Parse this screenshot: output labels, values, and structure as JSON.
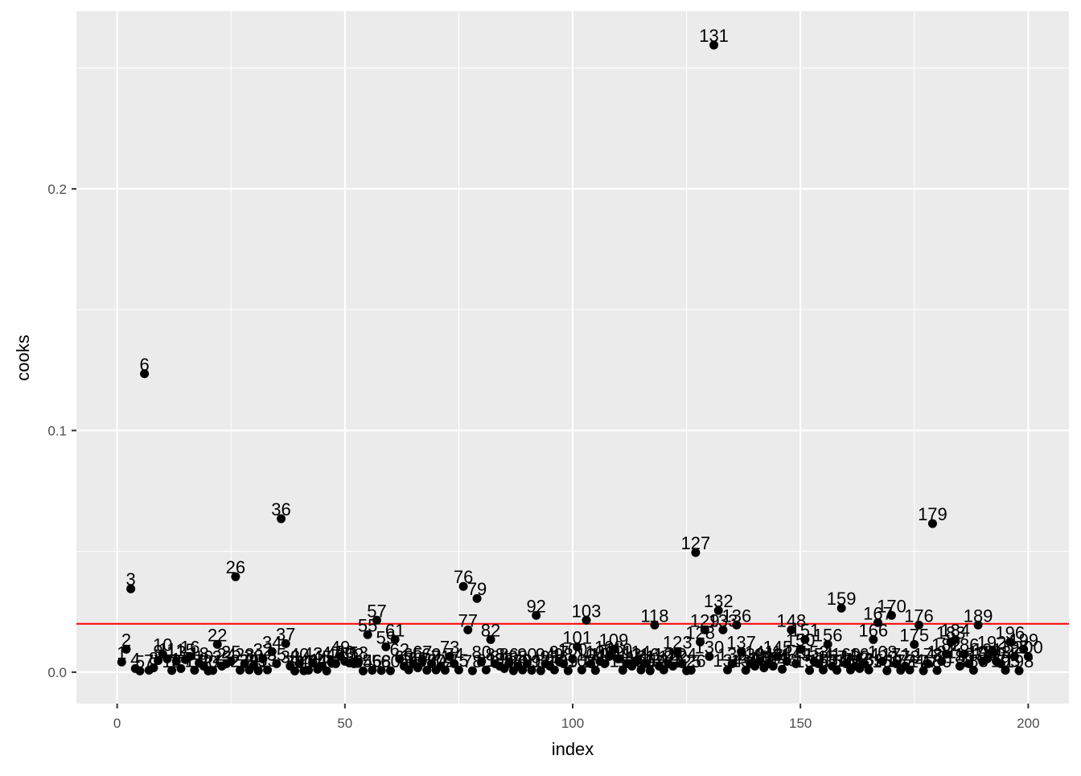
{
  "chart_data": {
    "type": "scatter",
    "xlabel": "index",
    "ylabel": "cooks",
    "xlim": [
      -8.94,
      208.94
    ],
    "ylim": [
      -0.01302,
      0.2735
    ],
    "x_ticks": [
      0,
      50,
      100,
      150,
      200
    ],
    "x_tick_labels": [
      "0",
      "50",
      "100",
      "150",
      "200"
    ],
    "y_ticks": [
      0.0,
      0.1,
      0.2
    ],
    "y_tick_labels": [
      "0.0",
      "0.1",
      "0.2"
    ],
    "grid": true,
    "reference_line": {
      "y": 0.02,
      "color": "#FF0000"
    },
    "colors": {
      "panel": "#EBEBEB",
      "grid": "#FFFFFF",
      "point": "#000000"
    },
    "points": [
      {
        "x": 1,
        "y": 0.0042,
        "label": "1"
      },
      {
        "x": 2,
        "y": 0.0095,
        "label": "2"
      },
      {
        "x": 3,
        "y": 0.0345,
        "label": "3"
      },
      {
        "x": 4,
        "y": 0.0015,
        "label": "4"
      },
      {
        "x": 5,
        "y": 0.0005,
        "label": "5"
      },
      {
        "x": 6,
        "y": 0.1235,
        "label": "6"
      },
      {
        "x": 7,
        "y": 0.0008,
        "label": "7"
      },
      {
        "x": 8,
        "y": 0.0018,
        "label": "8"
      },
      {
        "x": 9,
        "y": 0.0048,
        "label": "9"
      },
      {
        "x": 10,
        "y": 0.0075,
        "label": "10"
      },
      {
        "x": 11,
        "y": 0.0055,
        "label": "11"
      },
      {
        "x": 12,
        "y": 0.0007,
        "label": "12"
      },
      {
        "x": 13,
        "y": 0.0045,
        "label": "13"
      },
      {
        "x": 14,
        "y": 0.0015,
        "label": "14"
      },
      {
        "x": 15,
        "y": 0.0052,
        "label": "15"
      },
      {
        "x": 16,
        "y": 0.0065,
        "label": "16"
      },
      {
        "x": 17,
        "y": 0.0008,
        "label": "17"
      },
      {
        "x": 18,
        "y": 0.0038,
        "label": "18"
      },
      {
        "x": 19,
        "y": 0.0025,
        "label": "19"
      },
      {
        "x": 20,
        "y": 0.0005,
        "label": "20"
      },
      {
        "x": 21,
        "y": 0.0007,
        "label": "21"
      },
      {
        "x": 22,
        "y": 0.0115,
        "label": "22"
      },
      {
        "x": 23,
        "y": 0.0025,
        "label": "23"
      },
      {
        "x": 24,
        "y": 0.0035,
        "label": "24"
      },
      {
        "x": 25,
        "y": 0.0045,
        "label": "25"
      },
      {
        "x": 26,
        "y": 0.0395,
        "label": "26"
      },
      {
        "x": 27,
        "y": 0.0008,
        "label": "27"
      },
      {
        "x": 28,
        "y": 0.0035,
        "label": "28"
      },
      {
        "x": 29,
        "y": 0.0009,
        "label": "29"
      },
      {
        "x": 30,
        "y": 0.0028,
        "label": "30"
      },
      {
        "x": 31,
        "y": 0.0006,
        "label": "31"
      },
      {
        "x": 32,
        "y": 0.0055,
        "label": "32"
      },
      {
        "x": 33,
        "y": 0.0009,
        "label": "33"
      },
      {
        "x": 34,
        "y": 0.0085,
        "label": "34"
      },
      {
        "x": 35,
        "y": 0.0035,
        "label": "35"
      },
      {
        "x": 36,
        "y": 0.0635,
        "label": "36"
      },
      {
        "x": 37,
        "y": 0.0118,
        "label": "37"
      },
      {
        "x": 38,
        "y": 0.0025,
        "label": "38"
      },
      {
        "x": 39,
        "y": 0.0005,
        "label": "39"
      },
      {
        "x": 40,
        "y": 0.0035,
        "label": "40"
      },
      {
        "x": 41,
        "y": 0.0006,
        "label": "41"
      },
      {
        "x": 42,
        "y": 0.0008,
        "label": "42"
      },
      {
        "x": 43,
        "y": 0.0038,
        "label": "43"
      },
      {
        "x": 44,
        "y": 0.0012,
        "label": "44"
      },
      {
        "x": 45,
        "y": 0.0025,
        "label": "45"
      },
      {
        "x": 46,
        "y": 0.0005,
        "label": "46"
      },
      {
        "x": 47,
        "y": 0.0042,
        "label": "47"
      },
      {
        "x": 48,
        "y": 0.0035,
        "label": "48"
      },
      {
        "x": 49,
        "y": 0.0065,
        "label": "49"
      },
      {
        "x": 50,
        "y": 0.0045,
        "label": "50"
      },
      {
        "x": 51,
        "y": 0.0038,
        "label": "51"
      },
      {
        "x": 52,
        "y": 0.0035,
        "label": "52"
      },
      {
        "x": 53,
        "y": 0.0042,
        "label": "53"
      },
      {
        "x": 54,
        "y": 0.0005,
        "label": "54"
      },
      {
        "x": 55,
        "y": 0.0155,
        "label": "55"
      },
      {
        "x": 56,
        "y": 0.0008,
        "label": "56"
      },
      {
        "x": 57,
        "y": 0.0215,
        "label": "57"
      },
      {
        "x": 58,
        "y": 0.0007,
        "label": "58"
      },
      {
        "x": 59,
        "y": 0.0105,
        "label": "59"
      },
      {
        "x": 60,
        "y": 0.0006,
        "label": "60"
      },
      {
        "x": 61,
        "y": 0.0135,
        "label": "61"
      },
      {
        "x": 62,
        "y": 0.0055,
        "label": "62"
      },
      {
        "x": 63,
        "y": 0.0025,
        "label": "63"
      },
      {
        "x": 64,
        "y": 0.0009,
        "label": "64"
      },
      {
        "x": 65,
        "y": 0.0035,
        "label": "65"
      },
      {
        "x": 66,
        "y": 0.0018,
        "label": "66"
      },
      {
        "x": 67,
        "y": 0.0045,
        "label": "67"
      },
      {
        "x": 68,
        "y": 0.0008,
        "label": "68"
      },
      {
        "x": 69,
        "y": 0.0035,
        "label": "69"
      },
      {
        "x": 70,
        "y": 0.0009,
        "label": "70"
      },
      {
        "x": 71,
        "y": 0.0025,
        "label": "71"
      },
      {
        "x": 72,
        "y": 0.0008,
        "label": "72"
      },
      {
        "x": 73,
        "y": 0.0065,
        "label": "73"
      },
      {
        "x": 74,
        "y": 0.0035,
        "label": "74"
      },
      {
        "x": 75,
        "y": 0.0009,
        "label": "75"
      },
      {
        "x": 76,
        "y": 0.0355,
        "label": "76"
      },
      {
        "x": 77,
        "y": 0.0175,
        "label": "77"
      },
      {
        "x": 78,
        "y": 0.0006,
        "label": "78"
      },
      {
        "x": 79,
        "y": 0.0305,
        "label": "79"
      },
      {
        "x": 80,
        "y": 0.0045,
        "label": "80"
      },
      {
        "x": 81,
        "y": 0.0009,
        "label": "81"
      },
      {
        "x": 82,
        "y": 0.0135,
        "label": "82"
      },
      {
        "x": 83,
        "y": 0.0035,
        "label": "83"
      },
      {
        "x": 84,
        "y": 0.0025,
        "label": "84"
      },
      {
        "x": 85,
        "y": 0.0015,
        "label": "85"
      },
      {
        "x": 86,
        "y": 0.0035,
        "label": "86"
      },
      {
        "x": 87,
        "y": 0.0006,
        "label": "87"
      },
      {
        "x": 88,
        "y": 0.0025,
        "label": "88"
      },
      {
        "x": 89,
        "y": 0.0009,
        "label": "89"
      },
      {
        "x": 90,
        "y": 0.0035,
        "label": "90"
      },
      {
        "x": 91,
        "y": 0.0008,
        "label": "91"
      },
      {
        "x": 92,
        "y": 0.0235,
        "label": "92"
      },
      {
        "x": 93,
        "y": 0.0006,
        "label": "93"
      },
      {
        "x": 94,
        "y": 0.0035,
        "label": "94"
      },
      {
        "x": 95,
        "y": 0.0025,
        "label": "95"
      },
      {
        "x": 96,
        "y": 0.0009,
        "label": "96"
      },
      {
        "x": 97,
        "y": 0.0045,
        "label": "97"
      },
      {
        "x": 98,
        "y": 0.0035,
        "label": "98"
      },
      {
        "x": 99,
        "y": 0.0006,
        "label": "99"
      },
      {
        "x": 100,
        "y": 0.0055,
        "label": "100"
      },
      {
        "x": 101,
        "y": 0.0105,
        "label": "101"
      },
      {
        "x": 102,
        "y": 0.0009,
        "label": "102"
      },
      {
        "x": 103,
        "y": 0.0215,
        "label": "103"
      },
      {
        "x": 104,
        "y": 0.0035,
        "label": "104"
      },
      {
        "x": 105,
        "y": 0.0007,
        "label": "105"
      },
      {
        "x": 106,
        "y": 0.0045,
        "label": "106"
      },
      {
        "x": 107,
        "y": 0.0035,
        "label": "107"
      },
      {
        "x": 108,
        "y": 0.0065,
        "label": "108"
      },
      {
        "x": 109,
        "y": 0.0095,
        "label": "109"
      },
      {
        "x": 110,
        "y": 0.0055,
        "label": "110"
      },
      {
        "x": 111,
        "y": 0.0008,
        "label": "111"
      },
      {
        "x": 112,
        "y": 0.0035,
        "label": "112"
      },
      {
        "x": 113,
        "y": 0.0025,
        "label": "113"
      },
      {
        "x": 114,
        "y": 0.0045,
        "label": "114"
      },
      {
        "x": 115,
        "y": 0.0009,
        "label": "115"
      },
      {
        "x": 116,
        "y": 0.0035,
        "label": "116"
      },
      {
        "x": 117,
        "y": 0.0006,
        "label": "117"
      },
      {
        "x": 118,
        "y": 0.0195,
        "label": "118"
      },
      {
        "x": 119,
        "y": 0.0025,
        "label": "119"
      },
      {
        "x": 120,
        "y": 0.0009,
        "label": "120"
      },
      {
        "x": 121,
        "y": 0.0035,
        "label": "121"
      },
      {
        "x": 122,
        "y": 0.0025,
        "label": "122"
      },
      {
        "x": 123,
        "y": 0.0085,
        "label": "123"
      },
      {
        "x": 124,
        "y": 0.0035,
        "label": "124"
      },
      {
        "x": 125,
        "y": 0.0006,
        "label": "125"
      },
      {
        "x": 126,
        "y": 0.0008,
        "label": "126"
      },
      {
        "x": 127,
        "y": 0.0495,
        "label": "127"
      },
      {
        "x": 128,
        "y": 0.0125,
        "label": "128"
      },
      {
        "x": 129,
        "y": 0.0175,
        "label": "129"
      },
      {
        "x": 130,
        "y": 0.0065,
        "label": "130"
      },
      {
        "x": 131,
        "y": 0.2595,
        "label": "131"
      },
      {
        "x": 132,
        "y": 0.0255,
        "label": "132"
      },
      {
        "x": 133,
        "y": 0.0175,
        "label": "133"
      },
      {
        "x": 134,
        "y": 0.0009,
        "label": "134"
      },
      {
        "x": 135,
        "y": 0.0035,
        "label": "135"
      },
      {
        "x": 136,
        "y": 0.0195,
        "label": "136"
      },
      {
        "x": 137,
        "y": 0.0085,
        "label": "137"
      },
      {
        "x": 138,
        "y": 0.0008,
        "label": "138"
      },
      {
        "x": 139,
        "y": 0.0035,
        "label": "139"
      },
      {
        "x": 140,
        "y": 0.0025,
        "label": "140"
      },
      {
        "x": 141,
        "y": 0.0045,
        "label": "141"
      },
      {
        "x": 142,
        "y": 0.0018,
        "label": "142"
      },
      {
        "x": 143,
        "y": 0.0035,
        "label": "143"
      },
      {
        "x": 144,
        "y": 0.0025,
        "label": "144"
      },
      {
        "x": 145,
        "y": 0.0065,
        "label": "145"
      },
      {
        "x": 146,
        "y": 0.0012,
        "label": "146"
      },
      {
        "x": 147,
        "y": 0.0045,
        "label": "147"
      },
      {
        "x": 148,
        "y": 0.0175,
        "label": "148"
      },
      {
        "x": 149,
        "y": 0.0035,
        "label": "149"
      },
      {
        "x": 150,
        "y": 0.0095,
        "label": "150"
      },
      {
        "x": 151,
        "y": 0.0135,
        "label": "151"
      },
      {
        "x": 152,
        "y": 0.0007,
        "label": "152"
      },
      {
        "x": 153,
        "y": 0.0045,
        "label": "153"
      },
      {
        "x": 154,
        "y": 0.0035,
        "label": "154"
      },
      {
        "x": 155,
        "y": 0.0009,
        "label": "155"
      },
      {
        "x": 156,
        "y": 0.0115,
        "label": "156"
      },
      {
        "x": 157,
        "y": 0.0025,
        "label": "157"
      },
      {
        "x": 158,
        "y": 0.0008,
        "label": "158"
      },
      {
        "x": 159,
        "y": 0.0265,
        "label": "159"
      },
      {
        "x": 160,
        "y": 0.0035,
        "label": "160"
      },
      {
        "x": 161,
        "y": 0.0009,
        "label": "161"
      },
      {
        "x": 162,
        "y": 0.0025,
        "label": "162"
      },
      {
        "x": 163,
        "y": 0.0015,
        "label": "163"
      },
      {
        "x": 164,
        "y": 0.0035,
        "label": "164"
      },
      {
        "x": 165,
        "y": 0.0009,
        "label": "165"
      },
      {
        "x": 166,
        "y": 0.0135,
        "label": "166"
      },
      {
        "x": 167,
        "y": 0.0205,
        "label": "167"
      },
      {
        "x": 168,
        "y": 0.0045,
        "label": "168"
      },
      {
        "x": 169,
        "y": 0.0006,
        "label": "169"
      },
      {
        "x": 170,
        "y": 0.0235,
        "label": "170"
      },
      {
        "x": 171,
        "y": 0.0035,
        "label": "171"
      },
      {
        "x": 172,
        "y": 0.0008,
        "label": "172"
      },
      {
        "x": 173,
        "y": 0.0025,
        "label": "173"
      },
      {
        "x": 174,
        "y": 0.0009,
        "label": "174"
      },
      {
        "x": 175,
        "y": 0.0115,
        "label": "175"
      },
      {
        "x": 176,
        "y": 0.0195,
        "label": "176"
      },
      {
        "x": 177,
        "y": 0.0006,
        "label": "177"
      },
      {
        "x": 178,
        "y": 0.0035,
        "label": "178"
      },
      {
        "x": 179,
        "y": 0.0615,
        "label": "179"
      },
      {
        "x": 180,
        "y": 0.0007,
        "label": "180"
      },
      {
        "x": 181,
        "y": 0.0045,
        "label": "181"
      },
      {
        "x": 182,
        "y": 0.0075,
        "label": "182"
      },
      {
        "x": 183,
        "y": 0.0125,
        "label": "183"
      },
      {
        "x": 184,
        "y": 0.0135,
        "label": "184"
      },
      {
        "x": 185,
        "y": 0.0025,
        "label": "185"
      },
      {
        "x": 186,
        "y": 0.0075,
        "label": "186"
      },
      {
        "x": 187,
        "y": 0.0035,
        "label": "187"
      },
      {
        "x": 188,
        "y": 0.0008,
        "label": "188"
      },
      {
        "x": 189,
        "y": 0.0195,
        "label": "189"
      },
      {
        "x": 190,
        "y": 0.0045,
        "label": "190"
      },
      {
        "x": 191,
        "y": 0.0055,
        "label": "191"
      },
      {
        "x": 192,
        "y": 0.0085,
        "label": "192"
      },
      {
        "x": 193,
        "y": 0.0045,
        "label": "193"
      },
      {
        "x": 194,
        "y": 0.0035,
        "label": "194"
      },
      {
        "x": 195,
        "y": 0.0008,
        "label": "195"
      },
      {
        "x": 196,
        "y": 0.0125,
        "label": "196"
      },
      {
        "x": 197,
        "y": 0.0065,
        "label": "197"
      },
      {
        "x": 198,
        "y": 0.0006,
        "label": "198"
      },
      {
        "x": 199,
        "y": 0.0095,
        "label": "199"
      },
      {
        "x": 200,
        "y": 0.0065,
        "label": "200"
      }
    ]
  }
}
